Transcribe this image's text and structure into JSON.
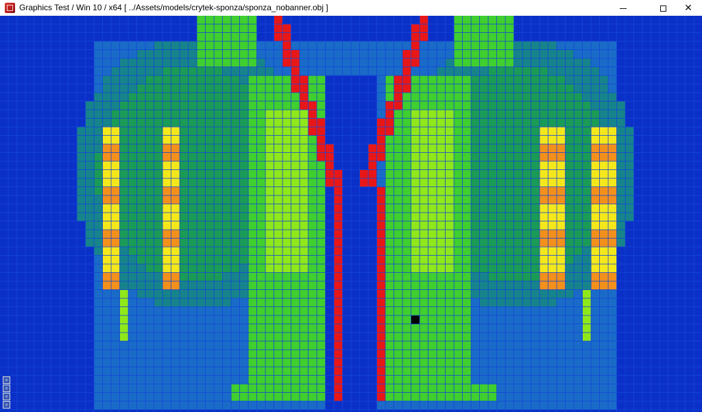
{
  "window": {
    "title": "Graphics Test / Win 10 / x64 [ ../Assets/models/crytek-sponza/sponza_nobanner.obj ]",
    "icons": {
      "app": "app-icon",
      "minimize": "minimize-icon",
      "maximize": "maximize-icon",
      "close": "close-icon"
    },
    "close_glyph": "✕"
  },
  "viewport": {
    "description_icons": [
      "overlay-icon-1",
      "overlay-icon-2",
      "overlay-icon-3",
      "overlay-icon-4"
    ],
    "overlay_glyphs": [
      "▫",
      "▫",
      "▫",
      "▫"
    ]
  },
  "chart_data": {
    "type": "heatmap",
    "colors": {
      "lowest": "#000000",
      "low": "#0b30c8",
      "mid_low": "#1a6bc8",
      "mid": "#16848a",
      "mid_high": "#1a9b56",
      "green": "#3fcf2e",
      "light_green": "#8fe81a",
      "yellow": "#f4e81b",
      "orange": "#f3901b",
      "high": "#e81717"
    }
  }
}
